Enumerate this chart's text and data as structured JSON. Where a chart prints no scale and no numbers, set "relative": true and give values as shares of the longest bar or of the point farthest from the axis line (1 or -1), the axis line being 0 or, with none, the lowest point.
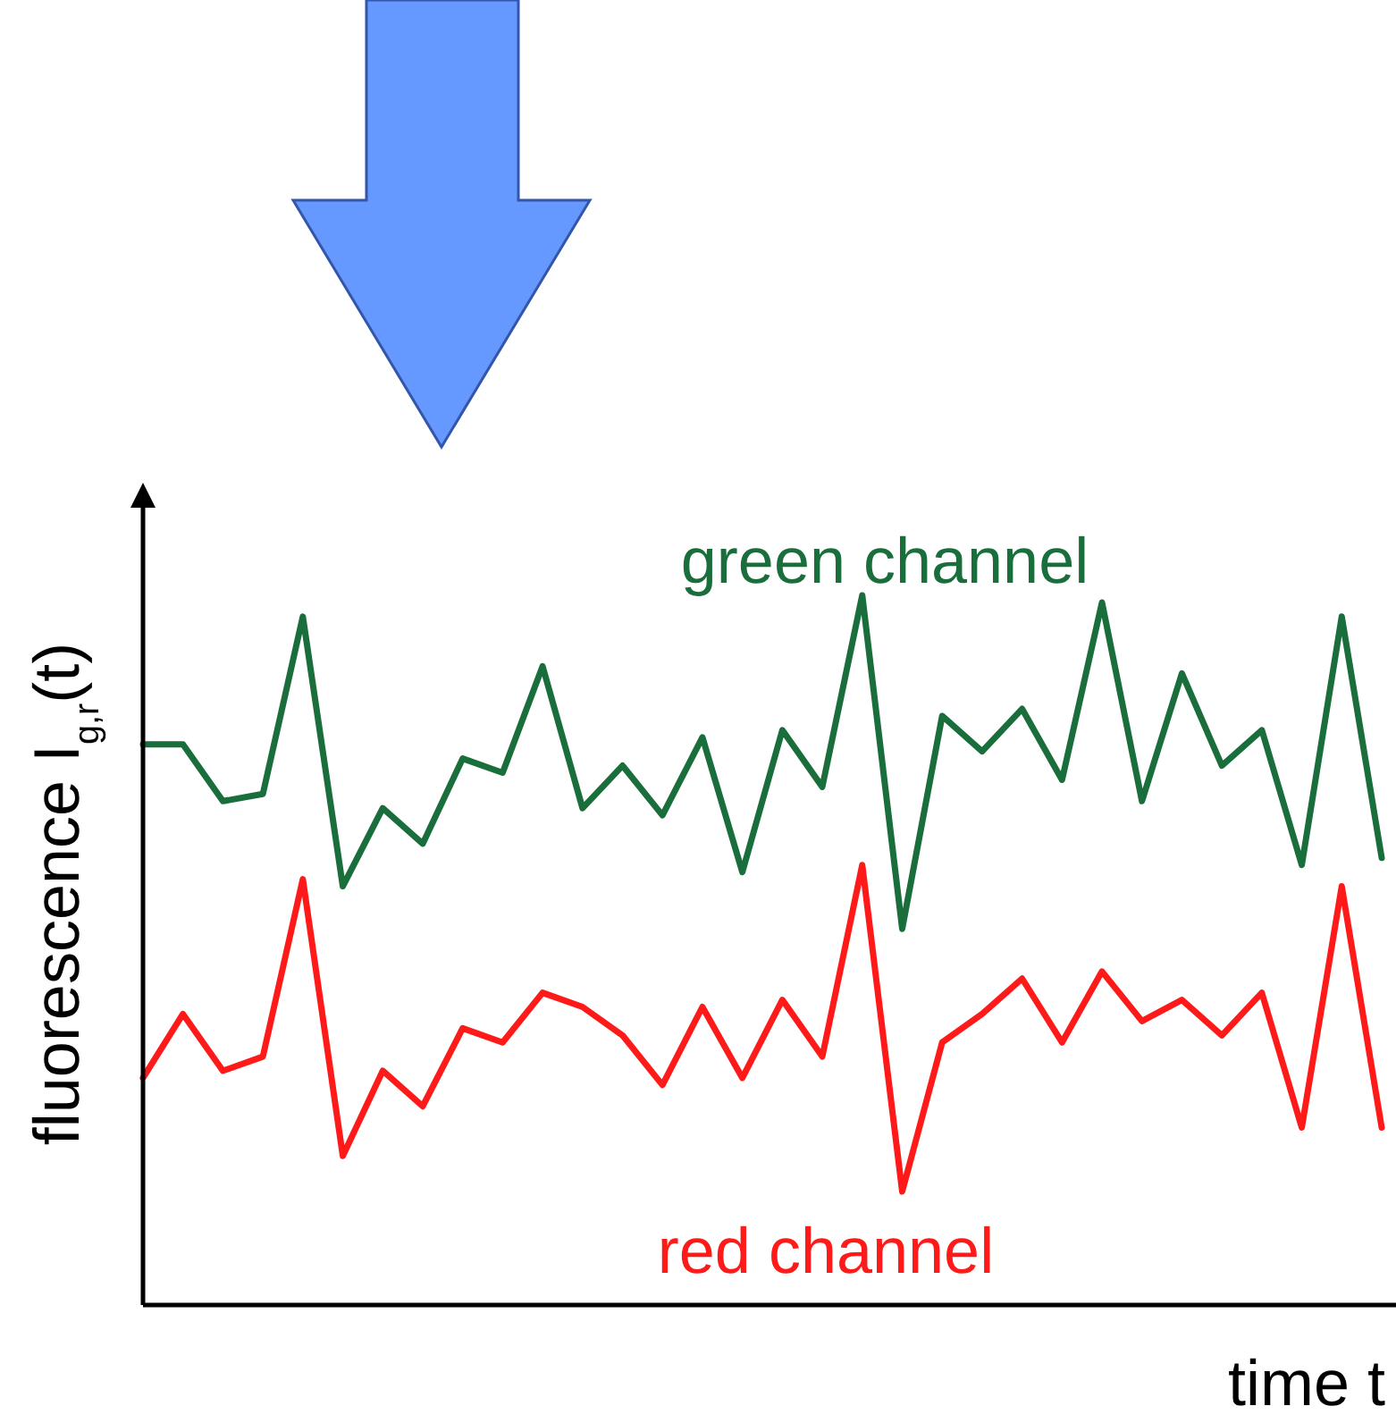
{
  "chart_data": {
    "type": "line",
    "relative": true,
    "xlabel": "time t",
    "ylabel": "fluorescence I$_{g,r}$(t)",
    "categories": [
      null,
      null,
      null,
      null,
      null,
      null,
      null,
      null,
      null,
      null,
      null,
      null,
      null,
      null,
      null,
      null,
      null,
      null,
      null,
      null,
      null,
      null,
      null,
      null,
      null,
      null,
      null,
      null,
      null,
      null,
      null,
      null
    ],
    "series": [
      {
        "name": "green channel",
        "color": "#1a6e3c",
        "values": [
          0.79,
          0.79,
          0.71,
          0.72,
          0.97,
          0.59,
          0.7,
          0.65,
          0.77,
          0.75,
          0.9,
          0.7,
          0.76,
          0.69,
          0.8,
          0.61,
          0.81,
          0.73,
          1.0,
          0.53,
          0.83,
          0.78,
          0.84,
          0.74,
          0.99,
          0.71,
          0.89,
          0.76,
          0.81,
          0.62,
          0.97,
          0.63
        ]
      },
      {
        "name": "red channel",
        "color": "#ff1a1a",
        "values": [
          0.32,
          0.41,
          0.33,
          0.35,
          0.6,
          0.21,
          0.33,
          0.28,
          0.39,
          0.37,
          0.44,
          0.42,
          0.38,
          0.31,
          0.42,
          0.32,
          0.43,
          0.35,
          0.62,
          0.16,
          0.37,
          0.41,
          0.46,
          0.37,
          0.47,
          0.4,
          0.43,
          0.38,
          0.44,
          0.25,
          0.59,
          0.25
        ]
      }
    ]
  }
}
